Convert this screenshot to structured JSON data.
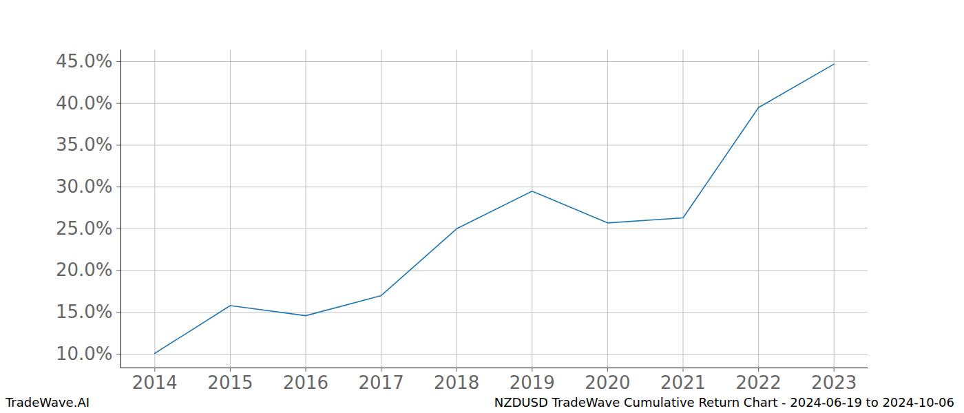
{
  "chart_data": {
    "type": "line",
    "x": [
      2014,
      2015,
      2016,
      2017,
      2018,
      2019,
      2020,
      2021,
      2022,
      2023
    ],
    "values": [
      10.1,
      15.8,
      14.6,
      17.0,
      25.0,
      29.5,
      25.7,
      26.3,
      39.5,
      44.7
    ],
    "color": "#1f77b4",
    "xlim": [
      2013.55,
      2023.45
    ],
    "xticks": [
      2014,
      2015,
      2016,
      2017,
      2018,
      2019,
      2020,
      2021,
      2022,
      2023
    ],
    "ylim": [
      8.35,
      46.4
    ],
    "yticks": [
      {
        "value": 10,
        "label": "10.0%"
      },
      {
        "value": 15,
        "label": "15.0%"
      },
      {
        "value": 20,
        "label": "20.0%"
      },
      {
        "value": 25,
        "label": "25.0%"
      },
      {
        "value": 30,
        "label": "30.0%"
      },
      {
        "value": 35,
        "label": "35.0%"
      },
      {
        "value": 40,
        "label": "40.0%"
      },
      {
        "value": 45,
        "label": "45.0%"
      }
    ],
    "grid": true,
    "annotations": [
      "TradeWave.AI",
      "NZDUSD TradeWave Cumulative Return Chart - 2024-06-19 to 2024-10-06"
    ]
  }
}
